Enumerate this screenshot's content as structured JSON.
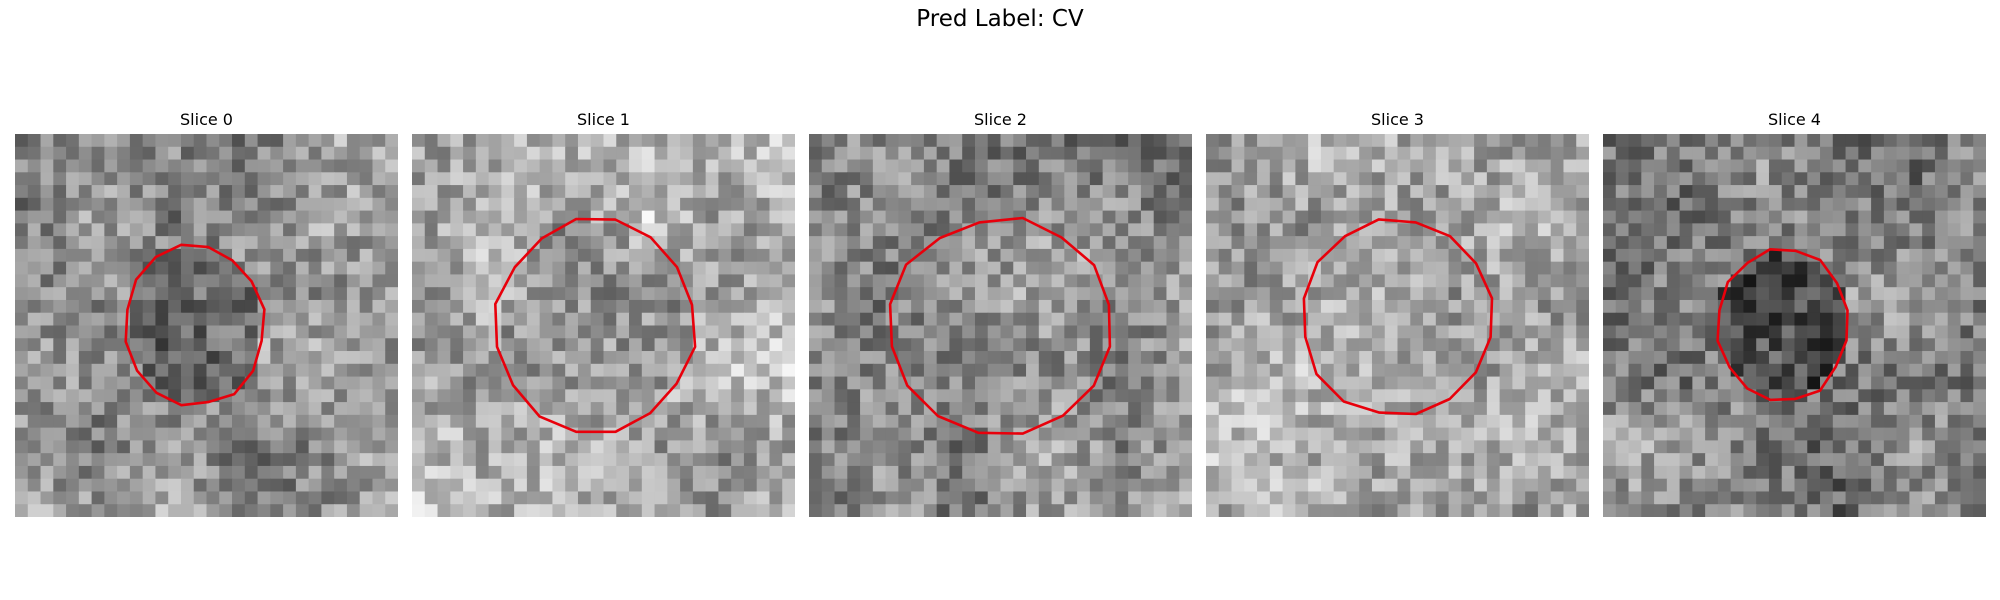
{
  "figure": {
    "title": "Pred Label: CV"
  },
  "panels": [
    {
      "title": "Slice 0",
      "image": "noise-grayscale-slice-with-red-contour"
    },
    {
      "title": "Slice 1",
      "image": "noise-grayscale-slice-with-red-contour"
    },
    {
      "title": "Slice 2",
      "image": "noise-grayscale-slice-with-red-contour"
    },
    {
      "title": "Slice 3",
      "image": "noise-grayscale-slice-with-red-contour"
    },
    {
      "title": "Slice 4",
      "image": "noise-grayscale-slice-with-red-contour"
    }
  ],
  "colors": {
    "contour": "#e8000b",
    "background": "#ffffff"
  }
}
